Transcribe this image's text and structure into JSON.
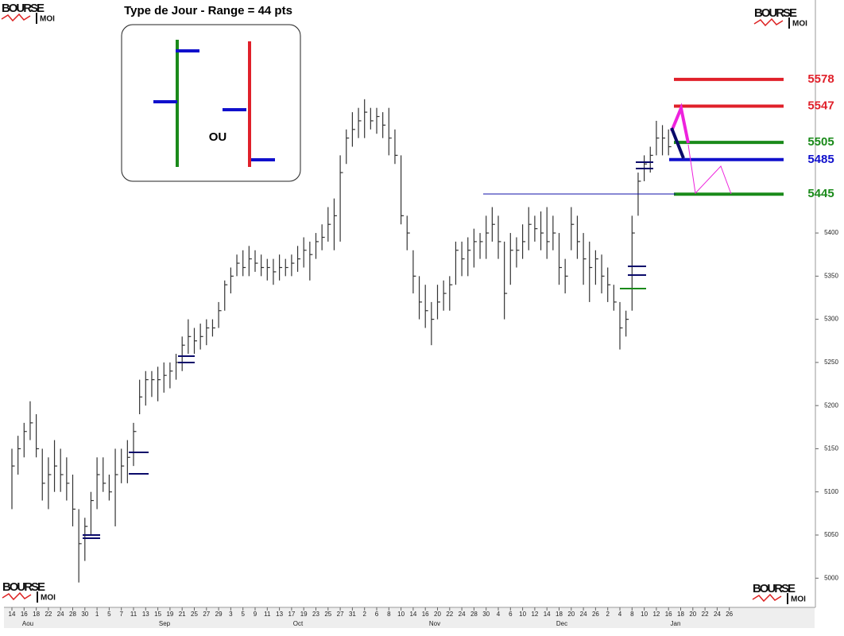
{
  "chart_data": {
    "type": "ohlc",
    "title": "Type de Jour - Range = 44 pts",
    "inset_label": "OU",
    "logo": {
      "word": "BOURSE",
      "sub": "MOI"
    },
    "ylim": [
      4968,
      5670
    ],
    "yticks": [
      5000,
      5050,
      5100,
      5150,
      5200,
      5250,
      5300,
      5350,
      5400
    ],
    "grid": false,
    "bar_color": "#333333",
    "xtick_labels": [
      "14",
      "16",
      "18",
      "22",
      "24",
      "28",
      "30",
      "1",
      "5",
      "7",
      "11",
      "13",
      "15",
      "19",
      "21",
      "25",
      "27",
      "29",
      "3",
      "5",
      "9",
      "11",
      "13",
      "17",
      "19",
      "23",
      "25",
      "27",
      "31",
      "2",
      "6",
      "8",
      "10",
      "14",
      "16",
      "20",
      "22",
      "24",
      "28",
      "30",
      "4",
      "6",
      "10",
      "12",
      "14",
      "18",
      "20",
      "24",
      "26",
      "2",
      "4",
      "8",
      "10",
      "12",
      "16",
      "18",
      "20",
      "22",
      "24",
      "26"
    ],
    "months": [
      "Aou",
      "Sep",
      "Oct",
      "Nov",
      "Dec",
      "Jan"
    ],
    "high": [
      5150,
      5165,
      5180,
      5205,
      5190,
      5150,
      5140,
      5160,
      5150,
      5140,
      5120,
      5080,
      5070,
      5100,
      5140,
      5140,
      5120,
      5150,
      5150,
      5160,
      5180,
      5230,
      5240,
      5240,
      5245,
      5250,
      5250,
      5260,
      5280,
      5300,
      5290,
      5295,
      5300,
      5300,
      5320,
      5345,
      5360,
      5375,
      5380,
      5385,
      5380,
      5375,
      5370,
      5370,
      5375,
      5370,
      5375,
      5385,
      5395,
      5390,
      5400,
      5410,
      5430,
      5440,
      5490,
      5520,
      5540,
      5545,
      5555,
      5545,
      5545,
      5540,
      5545,
      5520,
      5490,
      5420,
      5380,
      5350,
      5340,
      5320,
      5340,
      5345,
      5350,
      5390,
      5390,
      5395,
      5405,
      5400,
      5420,
      5430,
      5420,
      5390,
      5400,
      5395,
      5410,
      5430,
      5420,
      5425,
      5430,
      5420,
      5400,
      5370,
      5430,
      5420,
      5400,
      5390,
      5380,
      5375,
      5360,
      5340,
      5320,
      5310,
      5420,
      5470,
      5490,
      5500,
      5530,
      5525,
      5520
    ],
    "low": [
      5080,
      5120,
      5140,
      5160,
      5140,
      5090,
      5080,
      5100,
      5100,
      5090,
      5060,
      4995,
      5020,
      5050,
      5080,
      5100,
      5090,
      5060,
      5110,
      5110,
      5130,
      5190,
      5200,
      5210,
      5205,
      5215,
      5220,
      5230,
      5240,
      5260,
      5260,
      5265,
      5270,
      5280,
      5290,
      5310,
      5330,
      5350,
      5350,
      5350,
      5355,
      5350,
      5345,
      5340,
      5345,
      5350,
      5350,
      5355,
      5360,
      5345,
      5370,
      5380,
      5390,
      5380,
      5390,
      5480,
      5500,
      5510,
      5510,
      5520,
      5515,
      5510,
      5490,
      5480,
      5410,
      5380,
      5330,
      5300,
      5290,
      5270,
      5300,
      5310,
      5310,
      5340,
      5350,
      5350,
      5360,
      5370,
      5370,
      5390,
      5370,
      5300,
      5340,
      5360,
      5370,
      5380,
      5390,
      5380,
      5370,
      5380,
      5340,
      5330,
      5380,
      5370,
      5340,
      5320,
      5340,
      5330,
      5320,
      5310,
      5265,
      5280,
      5310,
      5420,
      5460,
      5470,
      5490,
      5490,
      5490
    ],
    "close": [
      5130,
      5150,
      5170,
      5180,
      5150,
      5110,
      5120,
      5130,
      5120,
      5110,
      5080,
      5040,
      5060,
      5090,
      5120,
      5110,
      5100,
      5120,
      5130,
      5140,
      5170,
      5210,
      5230,
      5230,
      5230,
      5235,
      5240,
      5250,
      5270,
      5280,
      5275,
      5280,
      5290,
      5290,
      5310,
      5340,
      5350,
      5365,
      5360,
      5370,
      5365,
      5360,
      5360,
      5355,
      5360,
      5360,
      5365,
      5370,
      5380,
      5375,
      5390,
      5395,
      5410,
      5420,
      5470,
      5510,
      5520,
      5530,
      5540,
      5530,
      5535,
      5525,
      5510,
      5490,
      5420,
      5400,
      5350,
      5320,
      5310,
      5300,
      5320,
      5330,
      5340,
      5380,
      5370,
      5380,
      5390,
      5390,
      5400,
      5410,
      5390,
      5330,
      5380,
      5380,
      5390,
      5410,
      5405,
      5400,
      5390,
      5400,
      5360,
      5350,
      5410,
      5390,
      5370,
      5360,
      5370,
      5350,
      5340,
      5320,
      5290,
      5300,
      5400,
      5460,
      5480,
      5490,
      5510,
      5510,
      5500
    ],
    "levels": [
      {
        "value": 5578,
        "color": "#e0202a"
      },
      {
        "value": 5547,
        "color": "#e0202a"
      },
      {
        "value": 5505,
        "color": "#1a8a1a"
      },
      {
        "value": 5485,
        "color": "#1010cc"
      },
      {
        "value": 5445,
        "color": "#1a8a1a"
      }
    ]
  }
}
